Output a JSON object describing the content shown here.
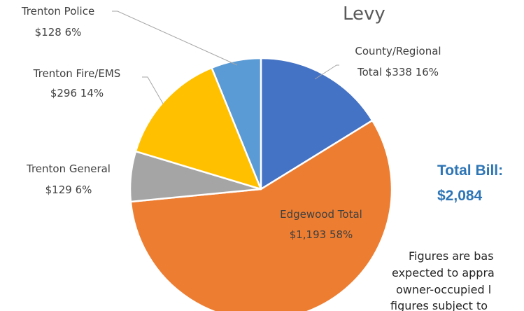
{
  "chart_data": {
    "type": "pie",
    "title": "Levy",
    "slices": [
      {
        "label": "County/Regional Total",
        "value": 338,
        "value_text": "$338",
        "percent": 16,
        "color": "#4472c4"
      },
      {
        "label": "Edgewood Total",
        "value": 1193,
        "value_text": "$1,193",
        "percent": 58,
        "color": "#ed7d31"
      },
      {
        "label": "Trenton General",
        "value": 129,
        "value_text": "$129",
        "percent": 6,
        "color": "#a5a5a5"
      },
      {
        "label": "Trenton Fire/EMS",
        "value": 296,
        "value_text": "$296",
        "percent": 14,
        "color": "#ffc000"
      },
      {
        "label": "Trenton Police",
        "value": 128,
        "value_text": "$128",
        "percent": 6,
        "color": "#5b9bd5"
      }
    ],
    "label_lines": {
      "county": [
        "County/Regional",
        "Total  $338  16%"
      ],
      "edgewood": [
        "Edgewood Total",
        "$1,193  58%"
      ],
      "general": [
        "Trenton General",
        "$129  6%"
      ],
      "fire": [
        "Trenton Fire/EMS",
        "$296  14%"
      ],
      "police": [
        "Trenton Police",
        "$128  6%"
      ]
    }
  },
  "total": {
    "label": "Total Bill:",
    "value": "$2,084"
  },
  "note_lines": [
    "Figures are bas",
    "expected to appra",
    "owner-occupied l",
    "figures subject to"
  ]
}
